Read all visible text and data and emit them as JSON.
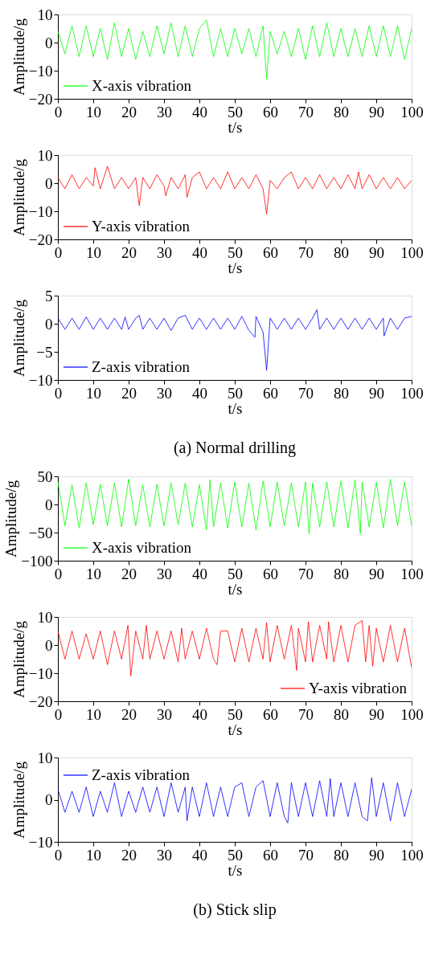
{
  "chart_data": [
    {
      "type": "line",
      "xlabel": "t/s",
      "ylabel": "Amplitude/g",
      "xlim": [
        0,
        100
      ],
      "xticks": [
        0,
        10,
        20,
        30,
        40,
        50,
        60,
        70,
        80,
        90,
        100
      ],
      "ylim": [
        -20,
        10
      ],
      "yticks": [
        -20,
        -10,
        0,
        10
      ],
      "grid": false,
      "legend": "bottom left",
      "series": [
        {
          "name": "X-axis vibration",
          "color": "#00ff00",
          "x": [
            0,
            2,
            4,
            6,
            8,
            10,
            12,
            14,
            16,
            18,
            20,
            22,
            24,
            26,
            28,
            30,
            32,
            34,
            36,
            38,
            40,
            42,
            44,
            46,
            48,
            50,
            52,
            54,
            56,
            58,
            59,
            60,
            62,
            64,
            66,
            68,
            70,
            72,
            74,
            76,
            78,
            80,
            82,
            84,
            86,
            88,
            90,
            92,
            94,
            96,
            98,
            100
          ],
          "values": [
            4,
            -4,
            6,
            -5,
            6,
            -5,
            5,
            -6,
            7,
            -5,
            5,
            -6,
            4,
            -5,
            6,
            -4,
            7,
            -5,
            6,
            -5,
            5,
            8,
            -5,
            5,
            -5,
            5,
            -4,
            5,
            -5,
            6,
            -13,
            4,
            -4,
            4,
            -5,
            5,
            -6,
            6,
            -5,
            7,
            -5,
            5,
            -5,
            5,
            -5,
            6,
            -5,
            6,
            -5,
            6,
            -6,
            5
          ]
        }
      ]
    },
    {
      "type": "line",
      "xlabel": "t/s",
      "ylabel": "Amplitude/g",
      "xlim": [
        0,
        100
      ],
      "xticks": [
        0,
        10,
        20,
        30,
        40,
        50,
        60,
        70,
        80,
        90,
        100
      ],
      "ylim": [
        -20,
        10
      ],
      "yticks": [
        -20,
        -10,
        0,
        10
      ],
      "grid": false,
      "legend": "bottom left",
      "series": [
        {
          "name": "Y-axis vibration",
          "color": "#ff0000",
          "x": [
            0,
            2,
            4,
            6,
            8,
            10,
            10.5,
            12,
            14,
            16,
            18,
            20,
            22,
            23,
            24,
            26,
            28,
            30,
            30.5,
            32,
            34,
            36,
            36.5,
            38,
            40,
            42,
            44,
            46,
            48,
            50,
            52,
            54,
            56,
            58,
            59,
            60,
            62,
            64,
            66,
            68,
            70,
            72,
            74,
            76,
            78,
            80,
            82,
            84,
            85,
            86,
            88,
            90,
            92,
            94,
            96,
            98,
            100
          ],
          "values": [
            2,
            -2,
            3,
            -2,
            2,
            -1,
            5.5,
            -2,
            6,
            -2,
            2,
            -2,
            2,
            -8,
            2,
            -2,
            3,
            -1,
            -4.5,
            2,
            -2,
            3,
            -5,
            2,
            4,
            -2,
            2,
            -2,
            4,
            -2,
            2,
            -2,
            3,
            -2,
            -11,
            1,
            -2,
            2,
            4,
            -2,
            2,
            -2,
            3,
            -2,
            2,
            -2,
            3,
            -2,
            4,
            -2,
            3,
            -2,
            2,
            -2,
            2,
            -2,
            1
          ]
        }
      ]
    },
    {
      "type": "line",
      "xlabel": "t/s",
      "ylabel": "Amplitude/g",
      "xlim": [
        0,
        100
      ],
      "xticks": [
        0,
        10,
        20,
        30,
        40,
        50,
        60,
        70,
        80,
        90,
        100
      ],
      "ylim": [
        -10,
        5
      ],
      "yticks": [
        -10,
        -5,
        0,
        5
      ],
      "grid": false,
      "legend": "bottom left",
      "annotations": [
        "(a) Normal drilling"
      ],
      "series": [
        {
          "name": "Z-axis vibration",
          "color": "#0000ff",
          "x": [
            0,
            2,
            4,
            6,
            8,
            10,
            12,
            14,
            16,
            18,
            19,
            20,
            22,
            23,
            24,
            26,
            28,
            30,
            32,
            34,
            36,
            38,
            40,
            42,
            44,
            46,
            48,
            50,
            52,
            54,
            55.7,
            56,
            58,
            59,
            60,
            62,
            64,
            66,
            68,
            70,
            72,
            73.2,
            74,
            76,
            78,
            80,
            82,
            84,
            86,
            88,
            90,
            92,
            92.2,
            94,
            96,
            98,
            100
          ],
          "values": [
            1,
            -1,
            1,
            -1,
            1.2,
            -1,
            1,
            -1,
            1,
            -1,
            1.2,
            -1,
            1,
            1.5,
            -1,
            1,
            -1,
            1,
            -1.2,
            1,
            1.5,
            -1,
            1,
            -1,
            1,
            -1,
            1,
            -1,
            1.3,
            -1.2,
            -2.4,
            1.3,
            -1.5,
            -8.3,
            1,
            -1,
            1,
            -1,
            1,
            -1,
            1,
            2.5,
            -1,
            1,
            -1,
            1,
            -1,
            1,
            -1,
            1,
            -1,
            1,
            -2.2,
            1,
            -1,
            1,
            1.3
          ]
        }
      ]
    },
    {
      "type": "line",
      "xlabel": "t/s",
      "ylabel": "Amplitude/g",
      "xlim": [
        0,
        100
      ],
      "xticks": [
        0,
        10,
        20,
        30,
        40,
        50,
        60,
        70,
        80,
        90,
        100
      ],
      "ylim": [
        -100,
        50
      ],
      "yticks": [
        -100,
        -50,
        0,
        50
      ],
      "grid": false,
      "legend": "bottom left",
      "series": [
        {
          "name": "X-axis vibration",
          "color": "#00ff00",
          "x": [
            0,
            2,
            4,
            6,
            8,
            10,
            12,
            14,
            16,
            18,
            20,
            22,
            24,
            26,
            28,
            30,
            32,
            34,
            36,
            38,
            40,
            42,
            43,
            44,
            46,
            48,
            50,
            52,
            54,
            56,
            58,
            60,
            62,
            64,
            66,
            68,
            70,
            71,
            72,
            74,
            76,
            78,
            80,
            82,
            84,
            85.5,
            86,
            88,
            90,
            92,
            94,
            96,
            98,
            100
          ],
          "values": [
            40,
            -38,
            35,
            -42,
            38,
            -36,
            36,
            -38,
            38,
            -40,
            45,
            -38,
            35,
            -40,
            36,
            -38,
            38,
            -36,
            38,
            -40,
            35,
            -45,
            44,
            -40,
            38,
            -42,
            40,
            -40,
            38,
            -45,
            42,
            -40,
            40,
            -38,
            38,
            -40,
            40,
            -52,
            38,
            -40,
            40,
            -40,
            42,
            -42,
            44,
            -52,
            40,
            -40,
            40,
            -42,
            45,
            -38,
            40,
            -38
          ]
        }
      ]
    },
    {
      "type": "line",
      "xlabel": "t/s",
      "ylabel": "Amplitude/g",
      "xlim": [
        0,
        100
      ],
      "xticks": [
        0,
        10,
        20,
        30,
        40,
        50,
        60,
        70,
        80,
        90,
        100
      ],
      "ylim": [
        -20,
        10
      ],
      "yticks": [
        -20,
        -10,
        0,
        10
      ],
      "grid": false,
      "legend": "bottom right",
      "series": [
        {
          "name": "Y-axis vibration",
          "color": "#ff0000",
          "x": [
            0,
            2,
            4,
            6,
            8,
            10,
            12,
            14,
            16,
            18,
            19.8,
            20.6,
            22,
            24,
            25,
            26,
            28,
            30,
            32,
            34,
            35,
            36,
            38,
            40,
            42,
            44,
            45,
            46,
            48,
            50,
            52,
            54,
            56,
            58,
            59,
            60,
            62,
            64,
            66,
            67.5,
            68,
            70,
            70.8,
            72,
            74,
            76,
            76.5,
            78,
            80,
            82,
            84,
            86,
            87,
            88,
            89,
            90,
            92,
            94,
            96,
            98,
            100
          ],
          "values": [
            5,
            -5,
            5,
            -5,
            4,
            -5,
            5,
            -7,
            5,
            -5,
            7,
            -11,
            5,
            -5,
            7,
            -5,
            5,
            -5,
            5,
            -6,
            6,
            -5,
            5,
            -5,
            6,
            -5,
            -7,
            5,
            5,
            -6,
            6,
            -6,
            6,
            -5,
            8,
            -6,
            7,
            -5,
            7,
            -9,
            6,
            -6,
            8.3,
            -6,
            7,
            -5,
            8.3,
            -6,
            7,
            -6,
            7,
            8.7,
            -6,
            7,
            -7.5,
            6,
            -6,
            7,
            -6,
            6,
            -8
          ]
        }
      ]
    },
    {
      "type": "line",
      "xlabel": "t/s",
      "ylabel": "Amplitude/g",
      "xlim": [
        0,
        100
      ],
      "xticks": [
        0,
        10,
        20,
        30,
        40,
        50,
        60,
        70,
        80,
        90,
        100
      ],
      "ylim": [
        -10,
        10
      ],
      "yticks": [
        -10,
        0,
        10
      ],
      "grid": false,
      "legend": "top left",
      "annotations": [
        "(b) Stick slip"
      ],
      "series": [
        {
          "name": "Z-axis vibration",
          "color": "#0000ff",
          "x": [
            0,
            2,
            4,
            6,
            8,
            10,
            12,
            14,
            16,
            18,
            20,
            22,
            24,
            26,
            28,
            30,
            32,
            34,
            36,
            36.5,
            38,
            40,
            42,
            44,
            46,
            48,
            50,
            52,
            54,
            56,
            58,
            60,
            62,
            64,
            65,
            66,
            68,
            70,
            72,
            74,
            76,
            77,
            78,
            80,
            82,
            84,
            86,
            87.5,
            88.7,
            90,
            92,
            94,
            96,
            98,
            100
          ],
          "values": [
            2.5,
            -3,
            2,
            -3,
            3,
            -4,
            2,
            -3,
            4,
            -4,
            2,
            -3,
            3,
            -3,
            3,
            -4,
            4,
            -3,
            3,
            -5,
            3,
            -4,
            4,
            -4,
            3,
            -4,
            3,
            4,
            -4,
            3,
            4.5,
            -4,
            4,
            -4,
            -5.5,
            4,
            -4,
            4,
            -4,
            4.5,
            -4,
            5,
            -4,
            4,
            -4,
            4,
            -4,
            -5,
            5.2,
            -4,
            4,
            -5,
            4,
            -4,
            2.5
          ]
        }
      ]
    }
  ]
}
